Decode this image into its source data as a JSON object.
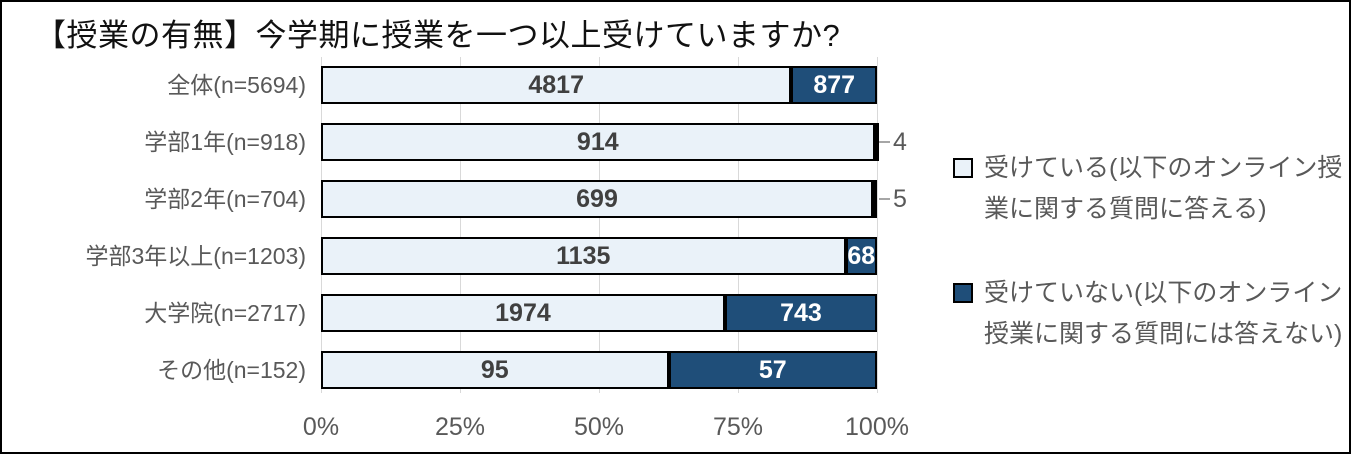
{
  "colors": {
    "accent_dark_blue": "#1F4E79",
    "light_fill": "#EAF2F9",
    "bar_border": "#000000",
    "gridline": "#D9D9D9",
    "axis_text": "#595959",
    "value_text": "#404040",
    "value_text_on_dark": "#FFFFFF",
    "leader_line": "#A6A6A6",
    "title_text": "#111111",
    "frame_border": "#000000",
    "background": "#FFFFFF"
  },
  "chart_data": {
    "type": "bar",
    "orientation": "horizontal",
    "stacked": true,
    "normalized": "100%",
    "title": "【授業の有無】今学期に授業を一つ以上受けていますか?",
    "categories": [
      "全体(n=5694)",
      "学部1年(n=918)",
      "学部2年(n=704)",
      "学部3年以上(n=1203)",
      "大学院(n=2717)",
      "その他(n=152)"
    ],
    "category_totals": [
      5694,
      918,
      704,
      1203,
      2717,
      152
    ],
    "series": [
      {
        "name": "受けている(以下のオンライン授業に関する質問に答える)",
        "values": [
          4817,
          914,
          699,
          1135,
          1974,
          95
        ]
      },
      {
        "name": "受けていない(以下のオンライン授業に関する質問には答えない)",
        "values": [
          877,
          4,
          5,
          68,
          743,
          57
        ]
      }
    ],
    "x_axis": {
      "tick_labels": [
        "0%",
        "25%",
        "50%",
        "75%",
        "100%"
      ],
      "range_percent": [
        0,
        100
      ]
    },
    "grid": true,
    "legend_position": "right"
  }
}
